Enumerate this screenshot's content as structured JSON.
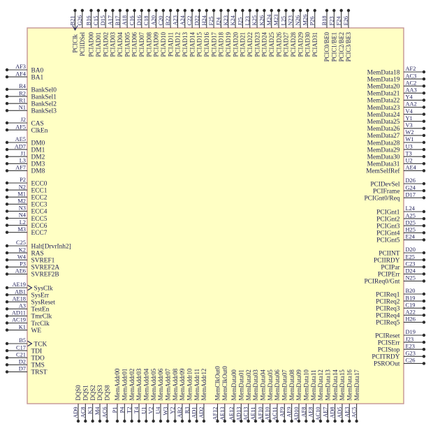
{
  "diagram": {
    "type": "chip-pinout",
    "colors": {
      "chip_fill": "#ffffc4",
      "chip_border": "#c49494",
      "lead": "#3a3a3a",
      "text": "#22225a"
    },
    "sides": {
      "top": [
        {
          "pins": [
            {
              "num": "B21",
              "label": "PCIClk",
              "clk": true
            },
            {
              "num": "G26",
              "label": "PCIIDSel"
            }
          ]
        },
        {
          "pins": [
            {
              "num": "B16",
              "label": "PCIAD00"
            },
            {
              "num": "C15",
              "label": "PCIAD01"
            },
            {
              "num": "D15",
              "label": "PCIAD02"
            },
            {
              "num": "A17",
              "label": "PCIAD03"
            },
            {
              "num": "B17",
              "label": "PCIAD04"
            },
            {
              "num": "A18",
              "label": "PCIAD05"
            },
            {
              "num": "C16",
              "label": "PCIAD06"
            },
            {
              "num": "D16",
              "label": "PCIAD07"
            },
            {
              "num": "C18",
              "label": "PCIAD08"
            },
            {
              "num": "A20",
              "label": "PCIAD09"
            },
            {
              "num": "C20",
              "label": "PCIAD10"
            },
            {
              "num": "B22",
              "label": "PCIAD11"
            },
            {
              "num": "A23",
              "label": "PCIAD12"
            },
            {
              "num": "A24",
              "label": "PCIAD13"
            },
            {
              "num": "C22",
              "label": "PCIAD14"
            },
            {
              "num": "D22",
              "label": "PCIAD15"
            },
            {
              "num": "H24",
              "label": "PCIAD16"
            },
            {
              "num": "F25",
              "label": "PCIAD17"
            },
            {
              "num": "J24",
              "label": "PCIAD18"
            },
            {
              "num": "K23",
              "label": "PCIAD19"
            },
            {
              "num": "K24",
              "label": "PCIAD20"
            },
            {
              "num": "J25",
              "label": "PCIAD21"
            },
            {
              "num": "L23",
              "label": "PCIAD22"
            },
            {
              "num": "K25",
              "label": "PCIAD23"
            },
            {
              "num": "K26",
              "label": "PCIAD24"
            },
            {
              "num": "M24",
              "label": "PCIAD25"
            },
            {
              "num": "M23",
              "label": "PCIAD26"
            },
            {
              "num": "L25",
              "label": "PCIAD27"
            },
            {
              "num": "N23",
              "label": "PCIAD28"
            },
            {
              "num": "N26",
              "label": "PCIAD29"
            },
            {
              "num": "M26",
              "label": "PCIAD30"
            },
            {
              "num": "P26",
              "label": "PCIAD31"
            }
          ]
        },
        {
          "pins": [
            {
              "num": "B18",
              "label": "PCIC0/BE0"
            },
            {
              "num": "F23",
              "label": "PCIC1/BE1"
            },
            {
              "num": "F24",
              "label": "PCIC2/BE2"
            },
            {
              "num": "E26",
              "label": "PCIC3/BE3"
            }
          ]
        }
      ],
      "left": [
        {
          "pins": [
            {
              "num": "AF3",
              "label": "BA0"
            },
            {
              "num": "AF4",
              "label": "BA1"
            }
          ]
        },
        {
          "pins": [
            {
              "num": "R4",
              "label": "BankSel0"
            },
            {
              "num": "R2",
              "label": "BankSel1"
            },
            {
              "num": "R1",
              "label": "BankSel2"
            },
            {
              "num": "N1",
              "label": "BankSel3"
            }
          ]
        },
        {
          "pins": [
            {
              "num": "J2",
              "label": "CAS"
            },
            {
              "num": "AF5",
              "label": "ClkEn"
            }
          ]
        },
        {
          "pins": [
            {
              "num": "AE5",
              "label": "DM0"
            },
            {
              "num": "AD7",
              "label": "DM1"
            },
            {
              "num": "J1",
              "label": "DM2"
            },
            {
              "num": "L3",
              "label": "DM3"
            },
            {
              "num": "AF7",
              "label": "DM8"
            }
          ]
        },
        {
          "pins": [
            {
              "num": "P2",
              "label": "ECC0"
            },
            {
              "num": "N2",
              "label": "ECC1"
            },
            {
              "num": "M1",
              "label": "ECC2"
            },
            {
              "num": "M2",
              "label": "ECC3"
            },
            {
              "num": "N3",
              "label": "ECC4"
            },
            {
              "num": "N4",
              "label": "ECC5"
            },
            {
              "num": "L2",
              "label": "ECC6"
            },
            {
              "num": "M3",
              "label": "ECC7"
            }
          ]
        },
        {
          "pins": [
            {
              "num": "C25",
              "label": "Halt[DrvrInh2]"
            },
            {
              "num": "K2",
              "label": "RAS"
            },
            {
              "num": "W4",
              "label": "SVREF1"
            },
            {
              "num": "P3",
              "label": "SVREF2A"
            },
            {
              "num": "AE6",
              "label": "SVREF2B"
            }
          ]
        },
        {
          "pins": [
            {
              "num": "AE19",
              "label": "SysClk",
              "clk": true
            },
            {
              "num": "AB1",
              "label": "SysErr"
            },
            {
              "num": "AE18",
              "label": "SysReset"
            },
            {
              "num": "A3",
              "label": "TestEn"
            },
            {
              "num": "AD11",
              "label": "TmrClk"
            },
            {
              "num": "AC19",
              "label": "TrcClk"
            },
            {
              "num": "K1",
              "label": "WE"
            }
          ]
        },
        {
          "pins": [
            {
              "num": "B5",
              "label": "TCK",
              "clk": true
            },
            {
              "num": "C17",
              "label": "TDI"
            },
            {
              "num": "C21",
              "label": "TDO"
            },
            {
              "num": "D2",
              "label": "TMS"
            },
            {
              "num": "D7",
              "label": "TRST"
            }
          ]
        }
      ],
      "right": [
        {
          "pins": [
            {
              "num": "AF2",
              "label": "MemData18"
            },
            {
              "num": "AC3",
              "label": "MemData19"
            },
            {
              "num": "AC2",
              "label": "MemData20"
            },
            {
              "num": "AA3",
              "label": "MemData21"
            },
            {
              "num": "Y4",
              "label": "MemData22"
            },
            {
              "num": "AA2",
              "label": "MemData23"
            },
            {
              "num": "V4",
              "label": "MemData24"
            },
            {
              "num": "Y1",
              "label": "MemData25"
            },
            {
              "num": "V3",
              "label": "MemData26"
            },
            {
              "num": "W2",
              "label": "MemData27"
            },
            {
              "num": "W1",
              "label": "MemData28"
            },
            {
              "num": "U3",
              "label": "MemData29"
            },
            {
              "num": "T3",
              "label": "MemData30"
            },
            {
              "num": "U2",
              "label": "MemData31"
            },
            {
              "num": "AE4",
              "label": "MemSelfRef"
            }
          ]
        },
        {
          "pins": [
            {
              "num": "D26",
              "label": "PCIDevSel"
            },
            {
              "num": "G24",
              "label": "PCIFrame"
            },
            {
              "num": "D17",
              "label": "PCIGnt0/Req"
            }
          ]
        },
        {
          "pins": [
            {
              "num": "L24",
              "label": "PCIGnt1"
            },
            {
              "num": "A25",
              "label": "PCIGnt2"
            },
            {
              "num": "D25",
              "label": "PCIGnt3"
            },
            {
              "num": "H25",
              "label": "PCIGnt4"
            },
            {
              "num": "E24",
              "label": "PCIGnt5"
            }
          ]
        },
        {
          "pins": [
            {
              "num": "D20",
              "label": "PCIINT"
            },
            {
              "num": "E25",
              "label": "PCIIRDY"
            },
            {
              "num": "C23",
              "label": "PCIPar"
            },
            {
              "num": "D24",
              "label": "PCIPErr"
            },
            {
              "num": "N25",
              "label": "PCIReq0/Gnt"
            }
          ]
        },
        {
          "pins": [
            {
              "num": "B20",
              "label": "PCIReq1"
            },
            {
              "num": "B19",
              "label": "PCIReq2"
            },
            {
              "num": "C19",
              "label": "PCIReq3"
            },
            {
              "num": "A22",
              "label": "PCIReq4"
            },
            {
              "num": "H26",
              "label": "PCIReq5"
            }
          ]
        },
        {
          "pins": [
            {
              "num": "D19",
              "label": "PCIReset"
            },
            {
              "num": "J23",
              "label": "PCISErr"
            },
            {
              "num": "E23",
              "label": "PCIStop"
            },
            {
              "num": "G23",
              "label": "PCITRDY"
            },
            {
              "num": "C26",
              "label": "PSROOut"
            }
          ]
        }
      ],
      "bottom": [
        {
          "pins": [
            {
              "num": "AD9",
              "label": "DQS0"
            },
            {
              "num": "AC8",
              "label": "DQS1"
            },
            {
              "num": "K3",
              "label": "DQS2"
            },
            {
              "num": "M4",
              "label": "DQS3"
            },
            {
              "num": "AC6",
              "label": "DQS8"
            }
          ]
        },
        {
          "pins": [
            {
              "num": "P1",
              "label": "MemAddr00"
            },
            {
              "num": "P4",
              "label": "MemAddr01"
            },
            {
              "num": "T2",
              "label": "MemAddr02"
            },
            {
              "num": "T4",
              "label": "MemAddr03"
            },
            {
              "num": "U1",
              "label": "MemAddr04"
            },
            {
              "num": "V2",
              "label": "MemAddr05"
            },
            {
              "num": "U4",
              "label": "MemAddr06"
            },
            {
              "num": "W3",
              "label": "MemAddr07"
            },
            {
              "num": "Y2",
              "label": "MemAddr08"
            },
            {
              "num": "AB2",
              "label": "MemAddr09"
            },
            {
              "num": "R3",
              "label": "MemAddr10"
            },
            {
              "num": "AD1",
              "label": "MemAddr11"
            },
            {
              "num": "AD2",
              "label": "MemAddr12"
            }
          ]
        },
        {
          "pins": [
            {
              "num": "AF12",
              "label": "MemClkOut0"
            },
            {
              "num": "AE13",
              "label": "MemClkOut0"
            }
          ]
        },
        {
          "pins": [
            {
              "num": "AE12",
              "label": "MemData00"
            },
            {
              "num": "AD13",
              "label": "MemData01"
            },
            {
              "num": "AC13",
              "label": "MemData02"
            },
            {
              "num": "AE11",
              "label": "MemData03"
            },
            {
              "num": "AF10",
              "label": "MemData04"
            },
            {
              "num": "AE10",
              "label": "MemData05"
            },
            {
              "num": "AC11",
              "label": "MemData06"
            },
            {
              "num": "AF9",
              "label": "MemData07"
            },
            {
              "num": "AE9",
              "label": "MemData08"
            },
            {
              "num": "AD10",
              "label": "MemData09"
            },
            {
              "num": "AF8",
              "label": "MemData10"
            },
            {
              "num": "AE8",
              "label": "MemData11"
            },
            {
              "num": "AC10",
              "label": "MemData12"
            },
            {
              "num": "AE7",
              "label": "MemData13"
            },
            {
              "num": "AD8",
              "label": "MemData14"
            },
            {
              "num": "AD5",
              "label": "MemData15"
            },
            {
              "num": "AE3",
              "label": "MemData16"
            },
            {
              "num": "AC5",
              "label": "MemData17"
            }
          ]
        }
      ]
    }
  }
}
